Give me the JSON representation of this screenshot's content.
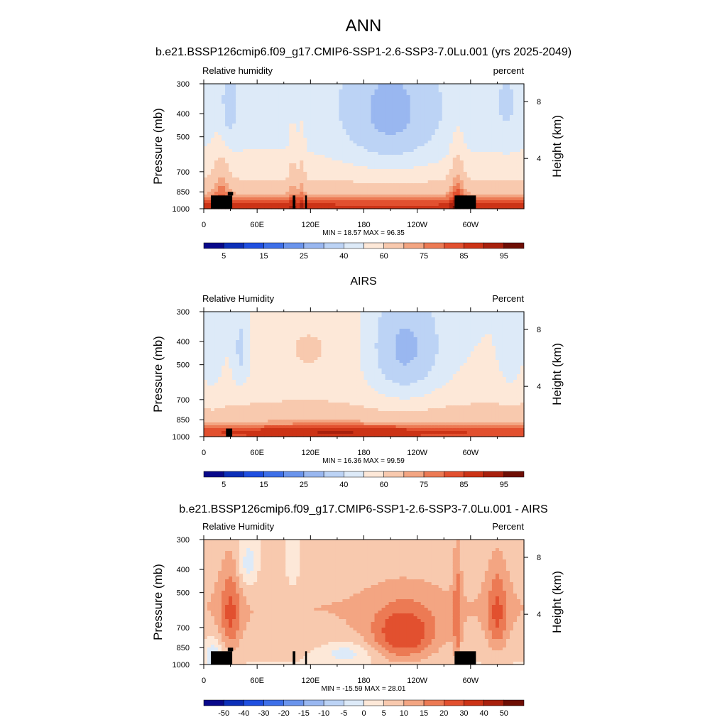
{
  "page": {
    "title": "ANN"
  },
  "chart_data": [
    {
      "type": "heatmap",
      "title": "b.e21.BSSP126cmip6.f09_g17.CMIP6-SSP1-2.6-SSP3-7.0Lu.001 (yrs 2025-2049)",
      "left_label": "Relative humidity",
      "right_label": "percent",
      "ylabel": "Pressure (mb)",
      "ylabel_right": "Height (km)",
      "x_ticks": [
        "0",
        "60E",
        "120E",
        "180",
        "120W",
        "60W"
      ],
      "y_ticks": [
        "300",
        "400",
        "500",
        "700",
        "850",
        "1000"
      ],
      "y_right_ticks": [
        "8",
        "4"
      ],
      "ylim": [
        1000,
        300
      ],
      "stats": "MIN =  18.57  MAX =  96.35",
      "colorbar_labels": [
        "5",
        "15",
        "25",
        "40",
        "60",
        "75",
        "85",
        "95"
      ],
      "colorbar_levels": [
        5,
        10,
        15,
        20,
        25,
        30,
        40,
        50,
        60,
        70,
        75,
        80,
        85,
        90,
        95
      ],
      "colorbar_colors": [
        "#08088a",
        "#0c2fb8",
        "#1f4fe0",
        "#3d6fe8",
        "#6a94ec",
        "#99b7f0",
        "#bcd3f5",
        "#ddeaf8",
        "#fde8d8",
        "#f8c9ae",
        "#f3a582",
        "#ec7a54",
        "#e2502f",
        "#cc3316",
        "#a8200d",
        "#6e0e04"
      ],
      "blocks_lon_pressure": [
        [
          8,
          32,
          880,
          1000
        ],
        [
          27,
          33,
          850,
          880
        ],
        [
          100,
          103,
          880,
          1000
        ],
        [
          114,
          116,
          880,
          1000
        ],
        [
          282,
          306,
          880,
          1000
        ]
      ]
    },
    {
      "type": "heatmap",
      "title": "AIRS",
      "left_label": "Relative Humidity",
      "right_label": "Percent",
      "ylabel": "Pressure (mb)",
      "ylabel_right": "Height (km)",
      "x_ticks": [
        "0",
        "60E",
        "120E",
        "180",
        "120W",
        "60W"
      ],
      "y_ticks": [
        "300",
        "400",
        "500",
        "700",
        "850",
        "1000"
      ],
      "y_right_ticks": [
        "8",
        "4"
      ],
      "ylim": [
        1000,
        300
      ],
      "stats": "MIN =  16.36  MAX =  99.59",
      "colorbar_labels": [
        "5",
        "15",
        "25",
        "40",
        "60",
        "75",
        "85",
        "95"
      ],
      "colorbar_levels": [
        5,
        10,
        15,
        20,
        25,
        30,
        40,
        50,
        60,
        70,
        75,
        80,
        85,
        90,
        95
      ],
      "colorbar_colors": [
        "#08088a",
        "#0c2fb8",
        "#1f4fe0",
        "#3d6fe8",
        "#6a94ec",
        "#99b7f0",
        "#bcd3f5",
        "#ddeaf8",
        "#fde8d8",
        "#f8c9ae",
        "#f3a582",
        "#ec7a54",
        "#e2502f",
        "#cc3316",
        "#a8200d",
        "#6e0e04"
      ],
      "blocks_lon_pressure": [
        [
          25,
          32,
          925,
          1000
        ]
      ]
    },
    {
      "type": "heatmap",
      "title": "b.e21.BSSP126cmip6.f09_g17.CMIP6-SSP1-2.6-SSP3-7.0Lu.001 - AIRS",
      "left_label": "Relative Humidity",
      "right_label": "Percent",
      "ylabel": "Pressure (mb)",
      "ylabel_right": "Height (km)",
      "x_ticks": [
        "0",
        "60E",
        "120E",
        "180",
        "120W",
        "60W"
      ],
      "y_ticks": [
        "300",
        "400",
        "500",
        "700",
        "850",
        "1000"
      ],
      "y_right_ticks": [
        "8",
        "4"
      ],
      "ylim": [
        1000,
        300
      ],
      "stats": "MIN = -15.59  MAX =  28.01",
      "colorbar_labels": [
        "-50",
        "-40",
        "-30",
        "-20",
        "-15",
        "-10",
        "-5",
        "0",
        "5",
        "10",
        "15",
        "20",
        "30",
        "40",
        "50"
      ],
      "colorbar_levels": [
        -50,
        -40,
        -30,
        -20,
        -15,
        -10,
        -5,
        0,
        5,
        10,
        15,
        20,
        30,
        40,
        50
      ],
      "colorbar_colors": [
        "#08088a",
        "#0c2fb8",
        "#1f4fe0",
        "#3d6fe8",
        "#6a94ec",
        "#99b7f0",
        "#bcd3f5",
        "#ddeaf8",
        "#fde8d8",
        "#f8c9ae",
        "#f3a582",
        "#ec7a54",
        "#e2502f",
        "#cc3316",
        "#a8200d",
        "#6e0e04"
      ],
      "blocks_lon_pressure": [
        [
          8,
          32,
          880,
          1000
        ],
        [
          27,
          33,
          850,
          880
        ],
        [
          100,
          103,
          880,
          1000
        ],
        [
          114,
          116,
          880,
          1000
        ],
        [
          282,
          306,
          880,
          1000
        ]
      ]
    }
  ]
}
